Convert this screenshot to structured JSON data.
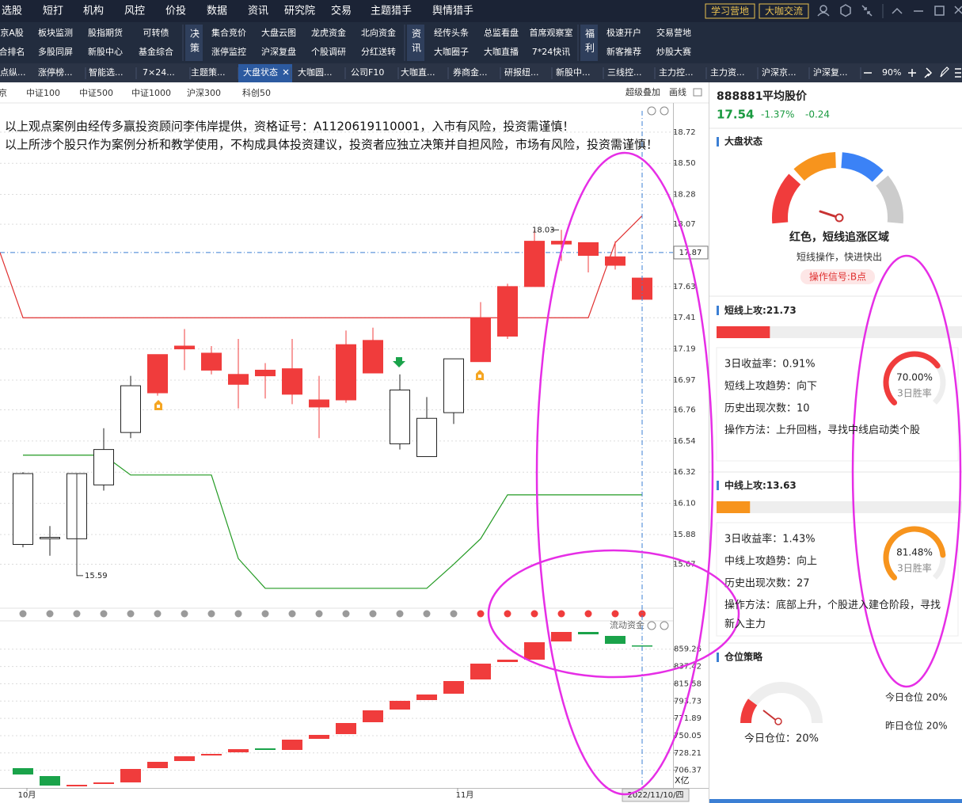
{
  "menu": [
    "选股",
    "短打",
    "机构",
    "风控",
    "价投",
    "数据",
    "资讯",
    "研究院",
    "交易",
    "主题猎手",
    "舆情猎手"
  ],
  "menu_right": [
    "学习营地",
    "大咖交流"
  ],
  "toolbar_items": [
    [
      "京A股",
      "合排名"
    ],
    [
      "板块监测",
      "多股同屏"
    ],
    [
      "股指期货",
      "新股中心"
    ],
    [
      "可转债",
      "基金综合"
    ],
    [
      "集合竞价",
      "涨停监控"
    ],
    [
      "大盘云图",
      "沪深复盘"
    ],
    [
      "龙虎资金",
      "个股调研"
    ],
    [
      "北向资金",
      "分红送转"
    ],
    [
      "经传头条",
      "大咖圈子"
    ],
    [
      "总监看盘",
      "大咖直播"
    ],
    [
      "首席观察室",
      "7*24快讯"
    ],
    [
      "极速开户",
      "新客推荐"
    ],
    [
      "交易营地",
      "炒股大赛"
    ]
  ],
  "toolbar_groups": [
    "决策",
    "资讯",
    "福利"
  ],
  "tabs": [
    "点纵...",
    "涨停榜...",
    "智能选...",
    "7×24...",
    "主题策...",
    "大盘状态",
    "大咖圆...",
    "公司F10",
    "大咖直...",
    "券商金...",
    "研报纽...",
    "新股中...",
    "三线控...",
    "主力控...",
    "主力资...",
    "沪深京...",
    "沪深复..."
  ],
  "zoom": "90%",
  "index_tabs": [
    "京",
    "中证100",
    "中证500",
    "中证1000",
    "沪深300",
    "科创50"
  ],
  "chart_tools": [
    "超级叠加",
    "画线"
  ],
  "chart_data": [
    {
      "type": "candlestick",
      "annotations": [
        "以上观点案例由经传多赢投资顾问李伟岸提供，资格证号：A1120619110001，入市有风险，投资需谨慎！",
        "以上所涉个股只作为案例分析和教学使用，不构成具体投资建议，投资者应独立决策并自担风险，市场有风险，投资需谨慎！"
      ],
      "open": [
        15.81,
        15.85,
        15.85,
        16.23,
        16.6,
        17.15,
        17.21,
        17.16,
        17.01,
        17.04,
        17.05,
        16.83,
        17.22,
        17.25,
        16.52,
        16.43,
        16.74,
        17.41,
        17.63,
        17.95,
        17.95,
        17.94,
        17.84,
        17.69
      ],
      "high": [
        16.32,
        15.94,
        16.31,
        16.63,
        17.0,
        17.15,
        17.33,
        17.21,
        17.26,
        17.09,
        17.26,
        17.0,
        17.32,
        17.34,
        17.01,
        16.85,
        17.12,
        17.52,
        17.65,
        18.03,
        18.03,
        17.94,
        17.95,
        17.69
      ],
      "low": [
        15.79,
        15.73,
        15.59,
        16.19,
        16.56,
        16.86,
        17.04,
        17.01,
        16.77,
        16.84,
        16.8,
        16.56,
        16.81,
        17.02,
        16.48,
        16.43,
        16.66,
        17.1,
        17.26,
        17.63,
        17.81,
        17.73,
        17.75,
        17.54
      ],
      "close": [
        16.31,
        15.86,
        16.31,
        16.48,
        16.93,
        16.88,
        17.19,
        17.04,
        16.94,
        17.0,
        16.87,
        16.78,
        16.83,
        17.02,
        16.9,
        16.7,
        17.12,
        17.1,
        17.28,
        17.63,
        17.93,
        17.85,
        17.78,
        17.54
      ],
      "up_color": "#ffffff",
      "down_color": "#f03c3c",
      "series": [
        {
          "color": "#e03030",
          "values": [
            17.41,
            17.41,
            17.41,
            17.41,
            17.41,
            17.41,
            17.41,
            17.41,
            17.41,
            17.41,
            17.41,
            17.41,
            17.41,
            17.41,
            17.41,
            17.41,
            17.41,
            17.41,
            17.41,
            17.41,
            17.41,
            17.41,
            17.94,
            18.13
          ]
        },
        {
          "color": "#229a22",
          "values": [
            16.44,
            16.44,
            16.44,
            16.44,
            16.3,
            16.3,
            16.3,
            16.3,
            15.71,
            15.5,
            15.5,
            15.5,
            15.5,
            15.5,
            15.5,
            15.5,
            15.67,
            15.85,
            16.16,
            16.16,
            16.16,
            16.16,
            16.16,
            16.16
          ]
        }
      ],
      "current_price": 17.87,
      "signal_colors": [
        "#9a9a9a",
        "#9a9a9a",
        "#9a9a9a",
        "#9a9a9a",
        "#9a9a9a",
        "#9a9a9a",
        "#9a9a9a",
        "#9a9a9a",
        "#9a9a9a",
        "#9a9a9a",
        "#9a9a9a",
        "#9a9a9a",
        "#9a9a9a",
        "#9a9a9a",
        "#9a9a9a",
        "#9a9a9a",
        "#9a9a9a",
        "#f03c3c",
        "#f03c3c",
        "#f03c3c",
        "#f03c3c",
        "#f03c3c",
        "#f03c3c",
        "#f03c3c"
      ],
      "ylim": [
        15.36,
        18.87
      ],
      "yticks": [
        18.72,
        {
          "value": 18.5,
          "label": "18.50"
        },
        18.28,
        18.07,
        17.63,
        17.41,
        17.19,
        16.97,
        16.76,
        16.54,
        16.32,
        {
          "value": 16.1,
          "label": "16.10"
        },
        15.88,
        15.67
      ],
      "grid": true
    },
    {
      "type": "floating_bar",
      "title": "流动资金",
      "categories": [
        "10月",
        null,
        null,
        null,
        null,
        null,
        null,
        null,
        null,
        null,
        null,
        null,
        null,
        null,
        null,
        null,
        "11月",
        null,
        null,
        null,
        null,
        null,
        null,
        "2022/11/10/四"
      ],
      "open": [
        709,
        699,
        686,
        689,
        691,
        709,
        718,
        725,
        729,
        734,
        732,
        746,
        752,
        767,
        783,
        795,
        803,
        821,
        843,
        846,
        869,
        881,
        876,
        864
      ],
      "close": [
        701,
        687,
        688,
        691,
        708,
        717,
        724,
        727,
        733,
        732,
        745,
        751,
        766,
        782,
        794,
        802,
        819,
        841,
        846,
        868,
        881,
        878,
        866,
        863
      ],
      "up_color": "#f03c3c",
      "down_color": "#1aa34a",
      "y_label": "X亿",
      "ylim": [
        684,
        894
      ],
      "yticks": [
        859.26,
        837.42,
        815.58,
        793.73,
        771.89,
        750.05,
        728.21,
        706.37
      ],
      "grid": true
    }
  ],
  "stock": {
    "code": "888881",
    "name": "平均股价",
    "price": "17.54",
    "change_pct": "-1.37%",
    "change": "-0.24"
  },
  "market_state": {
    "title": "大盘状态",
    "status": "红色，短线追涨区域",
    "advice": "短线操作，快进快出",
    "signal": "操作信号:B点"
  },
  "short_attack": {
    "name": "短线上攻:",
    "value": 21.73,
    "color": "#f03c3c",
    "stats": [
      "3日收益率：0.91%",
      "短线上攻趋势：向下",
      "历史出现次数：10"
    ],
    "method": "操作方法：上升回档，寻找中线启动类个股",
    "win_rate": {
      "value": 70,
      "label": "70.00%"
    },
    "win_label": "3日胜率"
  },
  "mid_attack": {
    "name": "中线上攻:",
    "value": 13.63,
    "color": "#f7941d",
    "stats": [
      "3日收益率：1.43%",
      "中线上攻趋势：向上",
      "历史出现次数：27"
    ],
    "method": "操作方法：底部上升，个股进入建仓阶段，寻找新入主力",
    "win_rate": {
      "value": 81.48,
      "label": "81.48%"
    },
    "win_label": "3日胜率"
  },
  "position": {
    "title": "仓位策略",
    "gauge_label": "今日仓位：20%",
    "today": "今日仓位  20%",
    "yesterday": "昨日仓位  20%"
  }
}
